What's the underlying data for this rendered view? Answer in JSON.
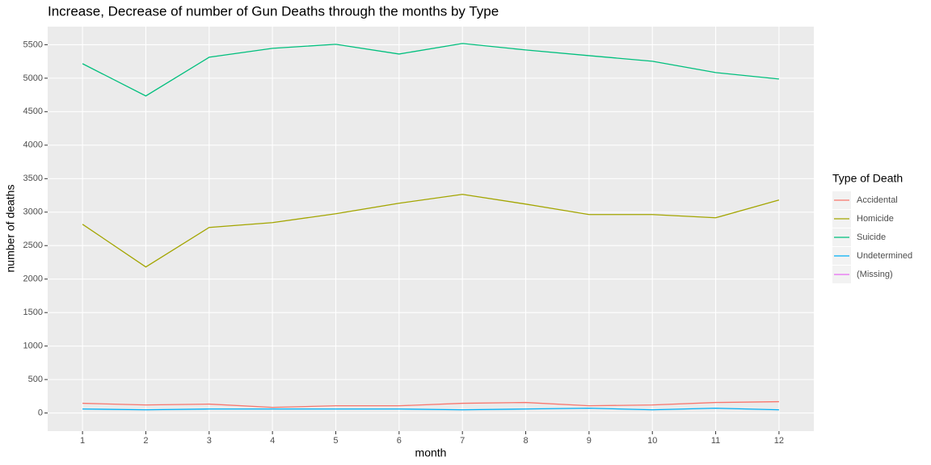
{
  "chart_data": {
    "type": "line",
    "title": "Increase, Decrease of number of Gun Deaths through the months by Type",
    "x_label": "month",
    "y_label": "number of deaths",
    "x": [
      1,
      2,
      3,
      4,
      5,
      6,
      7,
      8,
      9,
      10,
      11,
      12
    ],
    "series": [
      {
        "name": "Accidental",
        "color": "#F8766D",
        "values": [
          145,
          120,
          133,
          84,
          108,
          108,
          145,
          157,
          108,
          120,
          157,
          169
        ]
      },
      {
        "name": "Homicide",
        "color": "#A3A500",
        "values": [
          2819,
          2181,
          2771,
          2843,
          2976,
          3133,
          3265,
          3120,
          2964,
          2964,
          2916,
          3181
        ]
      },
      {
        "name": "Suicide",
        "color": "#00BF7D",
        "values": [
          5217,
          4735,
          5313,
          5446,
          5506,
          5361,
          5518,
          5422,
          5337,
          5253,
          5084,
          4988
        ]
      },
      {
        "name": "Undetermined",
        "color": "#00B0F6",
        "values": [
          60,
          48,
          60,
          60,
          60,
          60,
          48,
          60,
          72,
          48,
          72,
          48
        ]
      },
      {
        "name": "(Missing)",
        "color": "#E76BF3",
        "values": [
          null,
          null,
          null,
          null,
          null,
          null,
          null,
          null,
          null,
          null,
          null,
          null
        ]
      }
    ],
    "legend_title": "Type of Death",
    "legend": "right",
    "xlim": [
      0.45,
      12.55
    ],
    "xticks": [
      1,
      2,
      3,
      4,
      5,
      6,
      7,
      8,
      9,
      10,
      11,
      12
    ],
    "ylim": [
      -270,
      5770
    ],
    "yticks": [
      0,
      500,
      1000,
      1500,
      2000,
      2500,
      3000,
      3500,
      4000,
      4500,
      5000,
      5500
    ],
    "grid": true
  }
}
